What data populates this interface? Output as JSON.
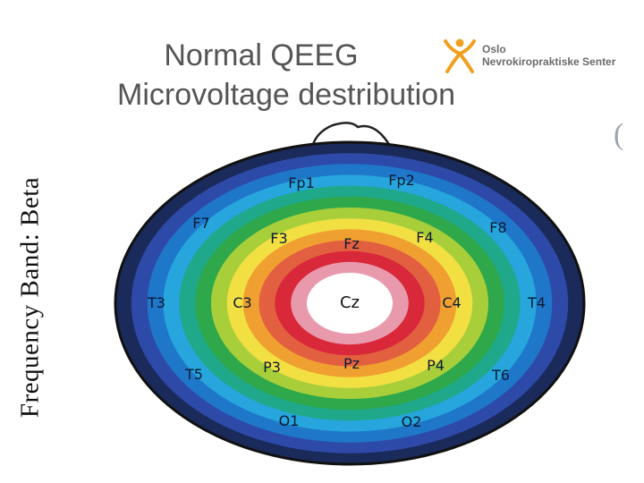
{
  "title": {
    "line1": "Normal QEEG",
    "line2": "Microvoltage  destribution"
  },
  "logo": {
    "line1": "Oslo",
    "line2": "Nevrokiropraktiske Senter",
    "color": "#f0a020"
  },
  "side_label": "Frequency Band: Beta",
  "stray_mark": "(",
  "ring_colors": [
    "#1a2a5a",
    "#2d4aa8",
    "#1f77c9",
    "#26a6dc",
    "#1fa88a",
    "#2ea84a",
    "#a8cf3a",
    "#f2e043",
    "#f0a030",
    "#e26040",
    "#d8283a",
    "#e89aac",
    "#ffffff"
  ],
  "electrodes": {
    "Fp1": "Fp1",
    "Fp2": "Fp2",
    "F7": "F7",
    "F8": "F8",
    "F3": "F3",
    "Fz": "Fz",
    "F4": "F4",
    "T3": "T3",
    "C3": "C3",
    "Cz": "Cz",
    "C4": "C4",
    "T4": "T4",
    "T5": "T5",
    "P3": "P3",
    "Pz": "Pz",
    "P4": "P4",
    "T6": "T6",
    "O1": "O1",
    "O2": "O2"
  }
}
